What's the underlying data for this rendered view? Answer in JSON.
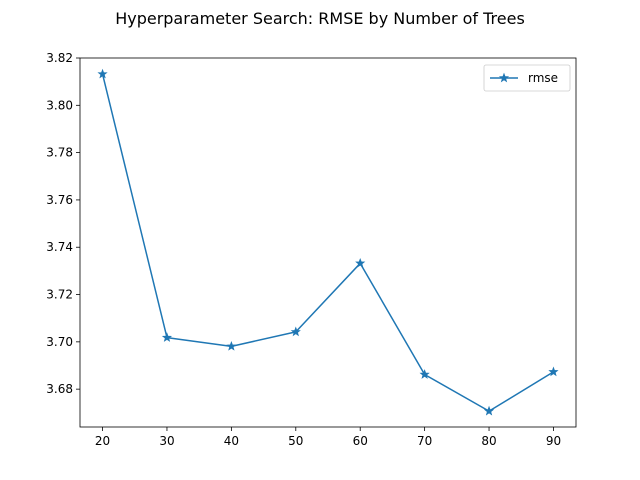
{
  "chart_data": {
    "type": "line",
    "title": "Hyperparameter Search: RMSE by Number of Trees",
    "xlabel": "",
    "ylabel": "",
    "x": [
      20,
      30,
      40,
      50,
      60,
      70,
      80,
      90
    ],
    "xticks": [
      20,
      30,
      40,
      50,
      60,
      70,
      80,
      90
    ],
    "yticks": [
      3.68,
      3.7,
      3.72,
      3.74,
      3.76,
      3.78,
      3.8,
      3.82
    ],
    "xlim": [
      16.5,
      93.5
    ],
    "ylim": [
      3.664,
      3.82
    ],
    "grid": false,
    "legend": "top-right",
    "series": [
      {
        "name": "rmse",
        "color": "#1f77b4",
        "marker": "star",
        "values": [
          3.8132,
          3.7018,
          3.6981,
          3.7042,
          3.7332,
          3.6862,
          3.6707,
          3.6873
        ]
      }
    ]
  }
}
